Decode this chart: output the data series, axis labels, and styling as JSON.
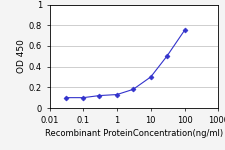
{
  "x": [
    0.03,
    0.1,
    0.3,
    1,
    3,
    10,
    30,
    100
  ],
  "y": [
    0.1,
    0.1,
    0.12,
    0.13,
    0.18,
    0.3,
    0.5,
    0.75
  ],
  "line_color": "#3333cc",
  "marker": "D",
  "marker_size": 2.5,
  "marker_facecolor": "#3333cc",
  "xlabel": "Recombinant ProteinConcentration(ng/ml)",
  "ylabel": "OD 450",
  "xlim": [
    0.01,
    1000
  ],
  "ylim": [
    0,
    1
  ],
  "yticks": [
    0,
    0.2,
    0.4,
    0.6,
    0.8,
    1
  ],
  "xticks": [
    0.01,
    0.1,
    1,
    10,
    100,
    1000
  ],
  "xtick_labels": [
    "0.01",
    "0.1",
    "1",
    "10",
    "100",
    "1000"
  ],
  "xlabel_fontsize": 6,
  "ylabel_fontsize": 6.5,
  "tick_fontsize": 6,
  "background_color": "#f4f4f4",
  "plot_bg_color": "#ffffff",
  "grid_color": "#bbbbbb"
}
